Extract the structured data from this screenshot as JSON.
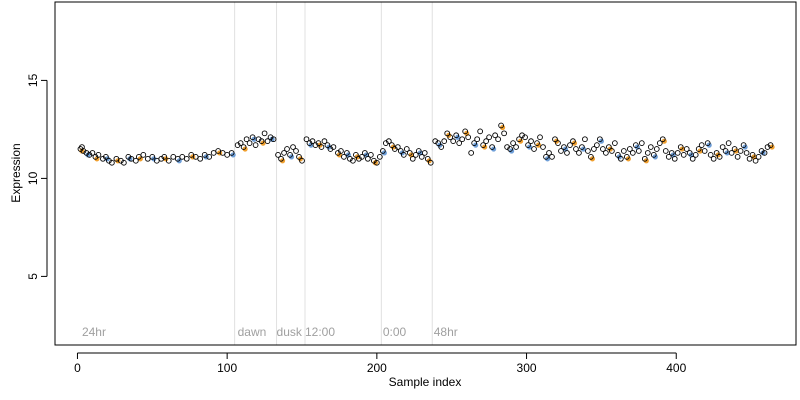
{
  "chart_data": {
    "type": "scatter",
    "xlabel": "Sample index",
    "ylabel": "Expression",
    "xlim": [
      -15,
      480
    ],
    "ylim": [
      1.5,
      19
    ],
    "xticks": [
      0,
      100,
      200,
      300,
      400
    ],
    "yticks": [
      5,
      10,
      15
    ],
    "grid": false,
    "legend": "none",
    "colors": {
      "point_default": "#000000",
      "point_blue": "#6f9fd8",
      "point_orange": "#f0a030",
      "separator": "#e0e0e0",
      "annotation": "#a0a0a0"
    },
    "separators": [
      105,
      133,
      152,
      203,
      237
    ],
    "annotations": [
      {
        "x": 3,
        "y": 1.95,
        "text": "24hr"
      },
      {
        "x": 107,
        "y": 1.95,
        "text": "dawn"
      },
      {
        "x": 133,
        "y": 1.95,
        "text": "dusk"
      },
      {
        "x": 152,
        "y": 1.95,
        "text": "12:00"
      },
      {
        "x": 204,
        "y": 1.95,
        "text": "0:00"
      },
      {
        "x": 238,
        "y": 1.95,
        "text": "48hr"
      }
    ],
    "series": [
      {
        "values": [
          [
            2,
            11.5
          ],
          [
            3,
            11.6
          ],
          [
            4,
            11.4
          ],
          [
            6,
            11.3
          ],
          [
            8,
            11.2
          ],
          [
            10,
            11.3
          ],
          [
            12,
            11.1
          ],
          [
            14,
            11.2
          ],
          [
            17,
            11.0
          ],
          [
            19,
            11.1
          ],
          [
            21,
            10.9
          ],
          [
            23,
            10.8
          ],
          [
            26,
            11.0
          ],
          [
            29,
            10.9
          ],
          [
            31,
            10.8
          ],
          [
            34,
            11.1
          ],
          [
            36,
            11.0
          ],
          [
            39,
            10.9
          ],
          [
            41,
            11.1
          ],
          [
            44,
            11.2
          ],
          [
            47,
            11.0
          ],
          [
            50,
            11.1
          ],
          [
            53,
            10.9
          ],
          [
            56,
            11.0
          ],
          [
            58,
            11.1
          ],
          [
            61,
            10.9
          ],
          [
            64,
            11.1
          ],
          [
            67,
            11.0
          ],
          [
            70,
            11.1
          ],
          [
            73,
            11.0
          ],
          [
            76,
            11.2
          ],
          [
            79,
            11.1
          ],
          [
            82,
            11.0
          ],
          [
            85,
            11.2
          ],
          [
            88,
            11.1
          ],
          [
            91,
            11.3
          ],
          [
            94,
            11.4
          ],
          [
            97,
            11.3
          ],
          [
            100,
            11.2
          ],
          [
            103,
            11.3
          ],
          [
            107,
            11.7
          ],
          [
            109,
            11.8
          ],
          [
            111,
            11.6
          ],
          [
            113,
            12.0
          ],
          [
            115,
            11.8
          ],
          [
            117,
            12.1
          ],
          [
            119,
            11.7
          ],
          [
            121,
            12.0
          ],
          [
            123,
            11.9
          ],
          [
            125,
            12.3
          ],
          [
            127,
            11.9
          ],
          [
            129,
            12.1
          ],
          [
            131,
            12.0
          ],
          [
            134,
            11.2
          ],
          [
            136,
            11.0
          ],
          [
            138,
            11.3
          ],
          [
            140,
            11.5
          ],
          [
            142,
            11.2
          ],
          [
            144,
            11.6
          ],
          [
            146,
            11.4
          ],
          [
            148,
            11.1
          ],
          [
            150,
            10.9
          ],
          [
            153,
            12.0
          ],
          [
            155,
            11.8
          ],
          [
            157,
            11.9
          ],
          [
            159,
            11.7
          ],
          [
            161,
            11.8
          ],
          [
            163,
            11.6
          ],
          [
            165,
            11.9
          ],
          [
            167,
            11.7
          ],
          [
            169,
            11.5
          ],
          [
            171,
            11.6
          ],
          [
            174,
            11.3
          ],
          [
            176,
            11.4
          ],
          [
            178,
            11.1
          ],
          [
            180,
            11.3
          ],
          [
            182,
            11.0
          ],
          [
            184,
            10.9
          ],
          [
            186,
            11.2
          ],
          [
            188,
            11.0
          ],
          [
            190,
            11.1
          ],
          [
            192,
            11.3
          ],
          [
            194,
            11.0
          ],
          [
            196,
            11.2
          ],
          [
            198,
            10.9
          ],
          [
            200,
            10.8
          ],
          [
            202,
            11.1
          ],
          [
            204,
            11.4
          ],
          [
            206,
            11.8
          ],
          [
            208,
            11.9
          ],
          [
            210,
            11.7
          ],
          [
            212,
            11.5
          ],
          [
            214,
            11.6
          ],
          [
            216,
            11.4
          ],
          [
            218,
            11.2
          ],
          [
            220,
            11.5
          ],
          [
            222,
            11.3
          ],
          [
            224,
            11.0
          ],
          [
            226,
            11.2
          ],
          [
            228,
            11.4
          ],
          [
            230,
            11.1
          ],
          [
            232,
            11.3
          ],
          [
            234,
            11.0
          ],
          [
            236,
            10.8
          ],
          [
            239,
            11.9
          ],
          [
            241,
            11.8
          ],
          [
            243,
            11.6
          ],
          [
            245,
            11.9
          ],
          [
            247,
            12.3
          ],
          [
            249,
            12.1
          ],
          [
            251,
            11.9
          ],
          [
            253,
            12.2
          ],
          [
            255,
            11.8
          ],
          [
            257,
            12.0
          ],
          [
            259,
            12.4
          ],
          [
            261,
            12.1
          ],
          [
            263,
            11.3
          ],
          [
            265,
            11.8
          ],
          [
            267,
            12.0
          ],
          [
            269,
            12.4
          ],
          [
            271,
            11.7
          ],
          [
            273,
            11.9
          ],
          [
            275,
            12.1
          ],
          [
            277,
            11.6
          ],
          [
            279,
            12.2
          ],
          [
            281,
            12.0
          ],
          [
            283,
            12.7
          ],
          [
            285,
            12.3
          ],
          [
            287,
            11.6
          ],
          [
            289,
            11.5
          ],
          [
            291,
            11.8
          ],
          [
            293,
            11.6
          ],
          [
            295,
            12.0
          ],
          [
            297,
            12.2
          ],
          [
            299,
            12.1
          ],
          [
            301,
            11.7
          ],
          [
            303,
            11.9
          ],
          [
            305,
            11.5
          ],
          [
            307,
            11.8
          ],
          [
            309,
            12.1
          ],
          [
            311,
            11.6
          ],
          [
            313,
            11.1
          ],
          [
            315,
            11.3
          ],
          [
            317,
            11.1
          ],
          [
            319,
            12.0
          ],
          [
            321,
            11.8
          ],
          [
            323,
            11.4
          ],
          [
            325,
            11.6
          ],
          [
            327,
            11.3
          ],
          [
            329,
            11.7
          ],
          [
            331,
            11.9
          ],
          [
            333,
            11.5
          ],
          [
            335,
            11.3
          ],
          [
            337,
            11.6
          ],
          [
            339,
            12.0
          ],
          [
            341,
            11.4
          ],
          [
            343,
            11.1
          ],
          [
            345,
            11.5
          ],
          [
            347,
            11.7
          ],
          [
            349,
            12.0
          ],
          [
            351,
            11.5
          ],
          [
            353,
            11.3
          ],
          [
            355,
            11.6
          ],
          [
            357,
            11.4
          ],
          [
            359,
            11.8
          ],
          [
            361,
            11.2
          ],
          [
            363,
            11.0
          ],
          [
            365,
            11.4
          ],
          [
            367,
            11.1
          ],
          [
            369,
            11.5
          ],
          [
            371,
            11.3
          ],
          [
            373,
            11.7
          ],
          [
            375,
            11.4
          ],
          [
            377,
            11.8
          ],
          [
            379,
            11.0
          ],
          [
            381,
            11.3
          ],
          [
            383,
            11.6
          ],
          [
            385,
            11.2
          ],
          [
            387,
            11.5
          ],
          [
            389,
            11.8
          ],
          [
            391,
            12.0
          ],
          [
            393,
            11.4
          ],
          [
            395,
            11.1
          ],
          [
            397,
            11.3
          ],
          [
            399,
            11.0
          ],
          [
            401,
            11.3
          ],
          [
            403,
            11.6
          ],
          [
            405,
            11.2
          ],
          [
            407,
            11.5
          ],
          [
            409,
            11.3
          ],
          [
            411,
            11.0
          ],
          [
            413,
            11.2
          ],
          [
            415,
            11.5
          ],
          [
            417,
            11.7
          ],
          [
            419,
            11.4
          ],
          [
            421,
            11.8
          ],
          [
            423,
            11.2
          ],
          [
            425,
            11.0
          ],
          [
            427,
            11.3
          ],
          [
            429,
            11.1
          ],
          [
            431,
            11.6
          ],
          [
            433,
            11.4
          ],
          [
            435,
            11.8
          ],
          [
            437,
            11.3
          ],
          [
            439,
            11.5
          ],
          [
            441,
            11.1
          ],
          [
            443,
            11.4
          ],
          [
            445,
            11.7
          ],
          [
            447,
            11.3
          ],
          [
            449,
            11.0
          ],
          [
            451,
            11.2
          ],
          [
            453,
            10.9
          ],
          [
            455,
            11.1
          ],
          [
            457,
            11.4
          ],
          [
            459,
            11.3
          ],
          [
            461,
            11.6
          ],
          [
            463,
            11.7
          ]
        ]
      }
    ]
  }
}
